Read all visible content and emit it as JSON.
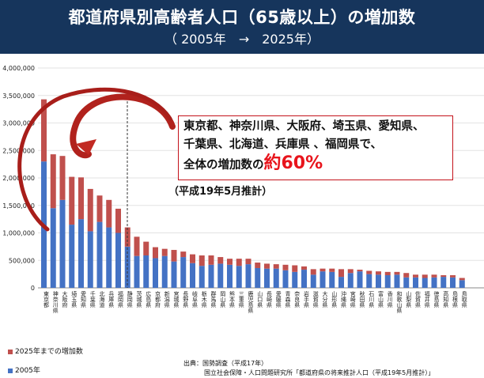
{
  "header": {
    "title": "都道府県別高齢者人口（65歳以上）の増加数",
    "subtitle": "（ 2005年　→　2025年）"
  },
  "callout": {
    "line1": "東京都、神奈川県、大阪府、埼玉県、愛知県、",
    "line2": "千葉県、北海道、兵庫県 、福岡県で、",
    "line3": "全体の増加数の",
    "pct": "約60%"
  },
  "estimate_note": "（平成19年5月推計）",
  "legend": {
    "increase": "2025年までの増加数",
    "base": "2005年"
  },
  "source": {
    "line1": "出典：国勢調査（平成17年）",
    "line2": "国立社会保障・人口問題研究所「都道府県の将来推計人口（平成19年5月推計）」"
  },
  "colors": {
    "header_bg": "#16355c",
    "series_2005": "#4472c4",
    "series_increase": "#c0504d",
    "accent_red": "#e8141c"
  },
  "chart_data": {
    "type": "bar",
    "stacked": true,
    "categories": [
      "東京都",
      "神奈川県",
      "大阪府",
      "埼玉県",
      "愛知県",
      "千葉県",
      "北海道",
      "兵庫県",
      "福岡県",
      "静岡県",
      "茨城県",
      "広島県",
      "京都府",
      "新潟県",
      "宮城県",
      "長野県",
      "岐阜県",
      "栃木県",
      "群馬県",
      "岡山県",
      "熊本県",
      "三重県",
      "鹿児島県",
      "山口県",
      "長崎県",
      "愛媛県",
      "青森県",
      "奈良県",
      "岩手県",
      "滋賀県",
      "大分県",
      "山形県",
      "沖縄県",
      "宮崎県",
      "秋田県",
      "石川県",
      "富山県",
      "香川県",
      "和歌山県",
      "山梨県",
      "佐賀県",
      "福井県",
      "徳島県",
      "高知県",
      "島根県",
      "鳥取県"
    ],
    "series": [
      {
        "name": "2005年",
        "values": [
          2300000,
          1450000,
          1600000,
          1150000,
          1250000,
          1030000,
          1200000,
          1100000,
          1000000,
          750000,
          580000,
          590000,
          540000,
          580000,
          480000,
          560000,
          450000,
          400000,
          420000,
          440000,
          420000,
          400000,
          430000,
          360000,
          350000,
          350000,
          320000,
          290000,
          330000,
          240000,
          300000,
          290000,
          200000,
          270000,
          300000,
          250000,
          240000,
          230000,
          240000,
          190000,
          190000,
          180000,
          190000,
          200000,
          190000,
          140000
        ]
      },
      {
        "name": "2025年までの増加数",
        "values": [
          1130000,
          980000,
          800000,
          870000,
          760000,
          770000,
          480000,
          500000,
          440000,
          350000,
          350000,
          250000,
          200000,
          130000,
          210000,
          100000,
          160000,
          190000,
          170000,
          120000,
          110000,
          130000,
          100000,
          100000,
          90000,
          80000,
          100000,
          120000,
          60000,
          100000,
          50000,
          60000,
          140000,
          70000,
          30000,
          60000,
          60000,
          60000,
          50000,
          80000,
          50000,
          60000,
          50000,
          30000,
          40000,
          40000
        ]
      }
    ],
    "ylim": [
      0,
      4000000
    ],
    "yticks": [
      "0",
      "500,000",
      "1,000,000",
      "1,500,000",
      "2,000,000",
      "2,500,000",
      "3,000,000",
      "3,500,000",
      "4,000,000"
    ],
    "legend_position": "bottom-left"
  }
}
